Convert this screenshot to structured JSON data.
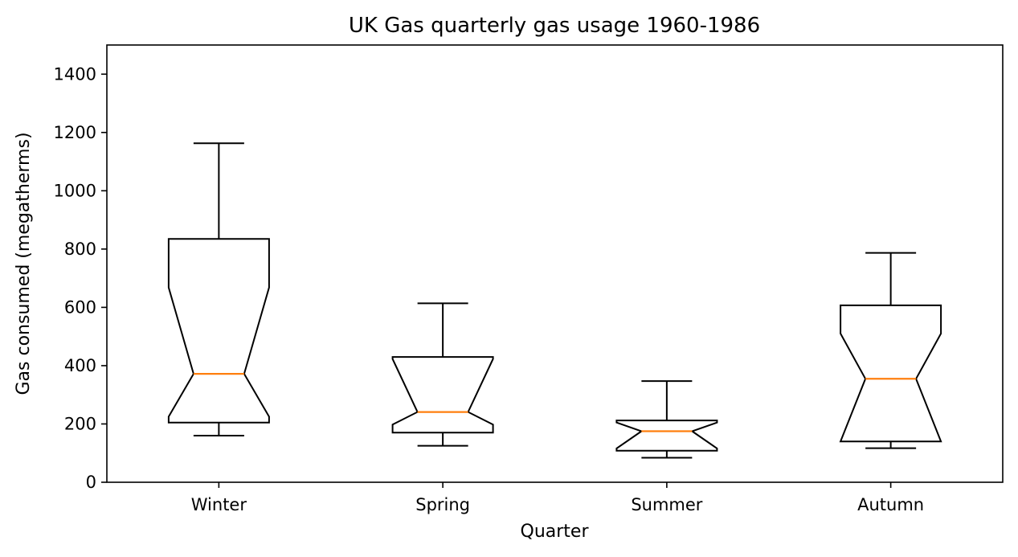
{
  "chart_data": {
    "type": "boxplot",
    "notched": true,
    "title": "UK Gas quarterly gas usage 1960-1986",
    "xlabel": "Quarter",
    "ylabel": "Gas consumed (megatherms)",
    "ylim": [
      0,
      1500
    ],
    "yticks": [
      0,
      200,
      400,
      600,
      800,
      1000,
      1200,
      1400
    ],
    "categories": [
      "Winter",
      "Spring",
      "Summer",
      "Autumn"
    ],
    "boxes": [
      {
        "category": "Winter",
        "whisker_low": 160,
        "q1": 205,
        "notch_low": 225,
        "median": 372,
        "notch_high": 668,
        "q3": 835,
        "whisker_high": 1163
      },
      {
        "category": "Spring",
        "whisker_low": 125,
        "q1": 170,
        "notch_low": 198,
        "median": 241,
        "notch_high": 423,
        "q3": 430,
        "whisker_high": 614
      },
      {
        "category": "Summer",
        "whisker_low": 84,
        "q1": 108,
        "notch_low": 116,
        "median": 175,
        "notch_high": 205,
        "q3": 212,
        "whisker_high": 347
      },
      {
        "category": "Autumn",
        "whisker_low": 117,
        "q1": 140,
        "notch_low": 140,
        "median": 355,
        "notch_high": 510,
        "q3": 607,
        "whisker_high": 787
      }
    ],
    "colors": {
      "box": "#000000",
      "median": "#ff7f0e"
    },
    "grid": false,
    "legend": "none"
  }
}
